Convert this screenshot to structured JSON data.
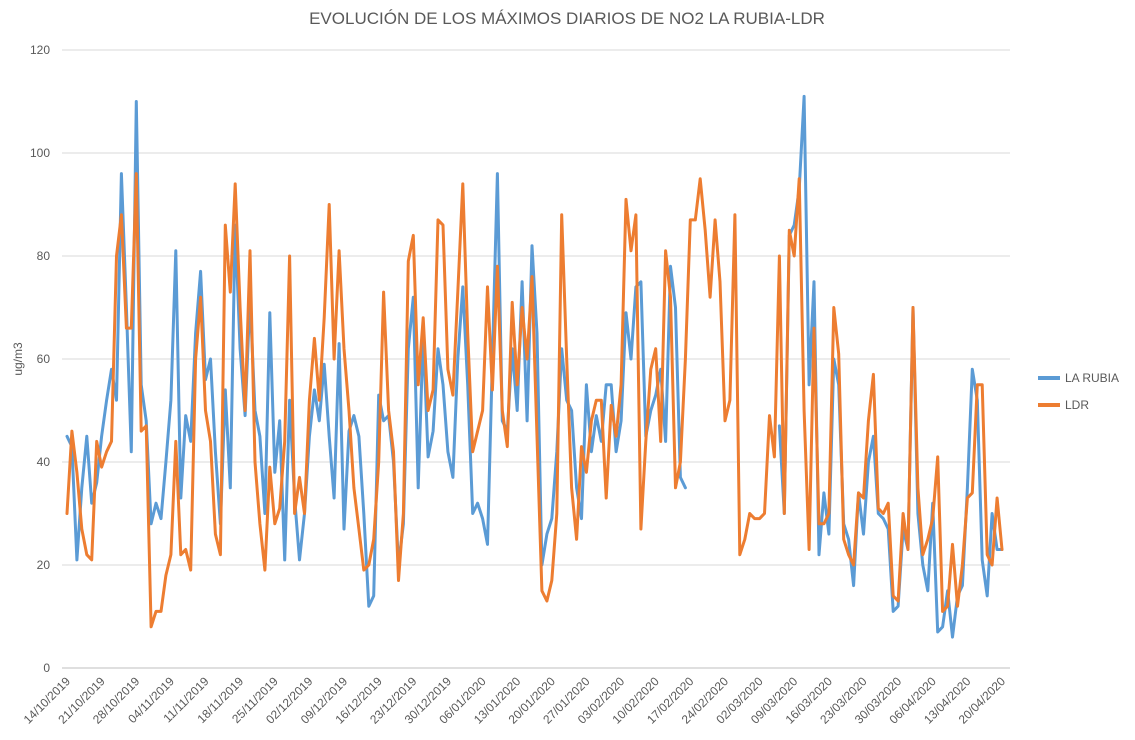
{
  "chart_data": {
    "type": "line",
    "title": "EVOLUCIÓN DE LOS MÁXIMOS DIARIOS DE NO2 LA RUBIA-LDR",
    "y_label": "ug/m3",
    "categories": [
      "14/10/2019",
      null,
      null,
      null,
      null,
      null,
      null,
      "21/10/2019",
      null,
      null,
      null,
      null,
      null,
      null,
      "28/10/2019",
      null,
      null,
      null,
      null,
      null,
      null,
      "04/11/2019",
      null,
      null,
      null,
      null,
      null,
      null,
      "11/11/2019",
      null,
      null,
      null,
      null,
      null,
      null,
      "18/11/2019",
      null,
      null,
      null,
      null,
      null,
      null,
      "25/11/2019",
      null,
      null,
      null,
      null,
      null,
      null,
      "02/12/2019",
      null,
      null,
      null,
      null,
      null,
      null,
      "09/12/2019",
      null,
      null,
      null,
      null,
      null,
      null,
      "16/12/2019",
      null,
      null,
      null,
      null,
      null,
      null,
      "23/12/2019",
      null,
      null,
      null,
      null,
      null,
      null,
      "30/12/2019",
      null,
      null,
      null,
      null,
      null,
      null,
      "06/01/2020",
      null,
      null,
      null,
      null,
      null,
      null,
      "13/01/2020",
      null,
      null,
      null,
      null,
      null,
      null,
      "20/01/2020",
      null,
      null,
      null,
      null,
      null,
      null,
      "27/01/2020",
      null,
      null,
      null,
      null,
      null,
      null,
      "03/02/2020",
      null,
      null,
      null,
      null,
      null,
      null,
      "10/02/2020",
      null,
      null,
      null,
      null,
      null,
      null,
      "17/02/2020",
      null,
      null,
      null,
      null,
      null,
      null,
      "24/02/2020",
      null,
      null,
      null,
      null,
      null,
      null,
      "02/03/2020",
      null,
      null,
      null,
      null,
      null,
      null,
      "09/03/2020",
      null,
      null,
      null,
      null,
      null,
      null,
      "16/03/2020",
      null,
      null,
      null,
      null,
      null,
      null,
      "23/03/2020",
      null,
      null,
      null,
      null,
      null,
      null,
      "30/03/2020",
      null,
      null,
      null,
      null,
      null,
      null,
      "06/04/2020",
      null,
      null,
      null,
      null,
      null,
      null,
      "13/04/2020",
      null,
      null,
      null,
      null,
      null,
      null,
      "20/04/2020"
    ],
    "series": [
      {
        "name": "LA RUBIA",
        "color": "#5b9bd5",
        "values": [
          45,
          43,
          21,
          35,
          45,
          32,
          36,
          45,
          52,
          58,
          52,
          96,
          70,
          42,
          110,
          55,
          48,
          28,
          32,
          29,
          40,
          52,
          81,
          33,
          49,
          44,
          65,
          77,
          56,
          60,
          42,
          28,
          54,
          35,
          86,
          62,
          49,
          72,
          50,
          45,
          30,
          69,
          38,
          48,
          21,
          52,
          33,
          21,
          30,
          45,
          54,
          48,
          59,
          45,
          33,
          63,
          27,
          46,
          49,
          45,
          30,
          12,
          14,
          53,
          48,
          49,
          40,
          20,
          28,
          62,
          72,
          35,
          65,
          41,
          46,
          62,
          55,
          42,
          37,
          60,
          74,
          55,
          30,
          32,
          29,
          24,
          60,
          96,
          48,
          46,
          62,
          50,
          75,
          48,
          82,
          65,
          20,
          26,
          29,
          42,
          62,
          52,
          50,
          35,
          29,
          55,
          42,
          49,
          44,
          55,
          55,
          42,
          48,
          69,
          60,
          74,
          75,
          45,
          50,
          53,
          58,
          44,
          78,
          70,
          37,
          35,
          null,
          null,
          null,
          null,
          null,
          null,
          null,
          null,
          null,
          null,
          null,
          null,
          null,
          null,
          null,
          null,
          null,
          null,
          47,
          30,
          84,
          86,
          93,
          111,
          55,
          75,
          22,
          34,
          26,
          60,
          55,
          28,
          25,
          16,
          34,
          26,
          40,
          45,
          30,
          29,
          27,
          11,
          12,
          27,
          23,
          70,
          30,
          20,
          15,
          32,
          7,
          8,
          15,
          6,
          14,
          16,
          35,
          58,
          52,
          21,
          14,
          30,
          23,
          23
        ]
      },
      {
        "name": "LDR",
        "color": "#ed7d31",
        "values": [
          30,
          46,
          38,
          27,
          22,
          21,
          44,
          39,
          42,
          44,
          80,
          88,
          66,
          66,
          96,
          46,
          47,
          8,
          11,
          11,
          18,
          22,
          44,
          22,
          23,
          19,
          60,
          72,
          50,
          44,
          26,
          22,
          86,
          73,
          94,
          70,
          50,
          81,
          40,
          28,
          19,
          39,
          28,
          31,
          44,
          80,
          30,
          37,
          30,
          52,
          64,
          52,
          68,
          90,
          60,
          81,
          62,
          50,
          35,
          27,
          19,
          20,
          25,
          40,
          73,
          50,
          42,
          17,
          30,
          79,
          84,
          55,
          68,
          50,
          54,
          87,
          86,
          58,
          53,
          73,
          94,
          65,
          42,
          46,
          50,
          74,
          54,
          78,
          50,
          43,
          71,
          55,
          70,
          60,
          76,
          45,
          15,
          13,
          17,
          30,
          88,
          60,
          35,
          25,
          43,
          38,
          48,
          52,
          52,
          33,
          51,
          45,
          55,
          91,
          81,
          88,
          27,
          44,
          58,
          62,
          44,
          81,
          72,
          35,
          40,
          60,
          87,
          87,
          95,
          85,
          72,
          87,
          75,
          48,
          52,
          88,
          22,
          25,
          30,
          29,
          29,
          30,
          49,
          41,
          80,
          30,
          85,
          80,
          95,
          50,
          23,
          66,
          28,
          28,
          30,
          70,
          61,
          25,
          22,
          20,
          34,
          33,
          48,
          57,
          31,
          30,
          32,
          14,
          13,
          30,
          23,
          70,
          35,
          22,
          25,
          29,
          41,
          11,
          12,
          24,
          12,
          20,
          33,
          34,
          55,
          55,
          22,
          20,
          33,
          23
        ]
      }
    ],
    "ylim": [
      0,
      120
    ],
    "yticks": [
      0,
      20,
      40,
      60,
      80,
      100,
      120
    ],
    "grid": true,
    "legend": "right"
  }
}
